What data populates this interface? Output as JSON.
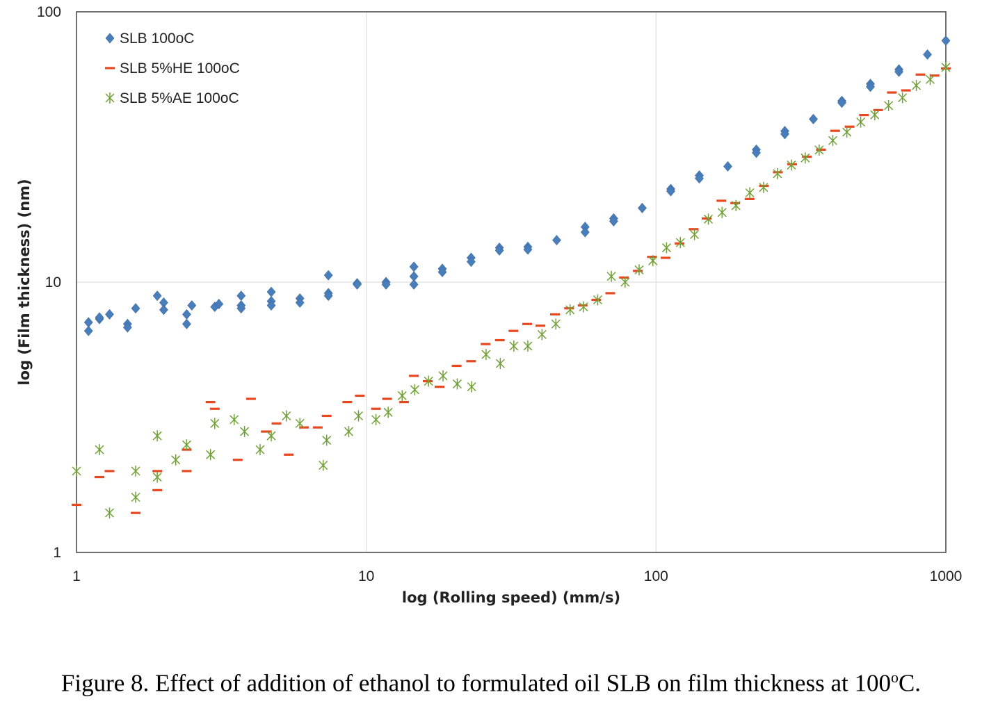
{
  "chart_data": {
    "type": "scatter",
    "xlabel": "log (Rolling speed) (mm/s)",
    "ylabel": "log (Film thickness) (nm)",
    "x_scale": "log",
    "y_scale": "log",
    "xlim": [
      1,
      1000
    ],
    "ylim": [
      1,
      100
    ],
    "x_ticks": [
      "1",
      "10",
      "100",
      "1000"
    ],
    "y_ticks": [
      "1",
      "10",
      "100"
    ],
    "grid": "major",
    "legend": "top-left",
    "series": [
      {
        "name": "SLB 100oC",
        "marker": "diamond",
        "color": "#4a7ebb",
        "points": [
          [
            1.1,
            7.1
          ],
          [
            1.1,
            6.6
          ],
          [
            1.2,
            7.3
          ],
          [
            1.2,
            7.4
          ],
          [
            1.3,
            7.6
          ],
          [
            1.5,
            7.0
          ],
          [
            1.5,
            6.8
          ],
          [
            1.6,
            8.0
          ],
          [
            1.9,
            8.9
          ],
          [
            2.0,
            8.4
          ],
          [
            2.0,
            7.9
          ],
          [
            2.4,
            7.6
          ],
          [
            2.4,
            7.0
          ],
          [
            2.5,
            8.2
          ],
          [
            3.0,
            8.1
          ],
          [
            3.1,
            8.3
          ],
          [
            3.7,
            8.9
          ],
          [
            3.7,
            8.2
          ],
          [
            3.7,
            8.0
          ],
          [
            4.7,
            9.2
          ],
          [
            4.7,
            8.5
          ],
          [
            4.7,
            8.2
          ],
          [
            5.9,
            8.7
          ],
          [
            5.9,
            8.4
          ],
          [
            7.4,
            10.6
          ],
          [
            7.4,
            9.1
          ],
          [
            7.4,
            8.9
          ],
          [
            9.3,
            9.9
          ],
          [
            9.3,
            9.8
          ],
          [
            11.7,
            10.0
          ],
          [
            11.7,
            9.8
          ],
          [
            14.6,
            11.4
          ],
          [
            14.6,
            10.5
          ],
          [
            14.6,
            9.8
          ],
          [
            18.3,
            11.2
          ],
          [
            18.3,
            10.9
          ],
          [
            23.0,
            12.3
          ],
          [
            23.0,
            11.9
          ],
          [
            28.8,
            13.4
          ],
          [
            28.8,
            13.1
          ],
          [
            36.1,
            13.5
          ],
          [
            36.1,
            13.2
          ],
          [
            45.4,
            14.3
          ],
          [
            56.9,
            16.0
          ],
          [
            56.9,
            15.3
          ],
          [
            71.4,
            17.2
          ],
          [
            71.4,
            16.8
          ],
          [
            89.6,
            18.8
          ],
          [
            112.4,
            22.1
          ],
          [
            112.4,
            21.7
          ],
          [
            141.0,
            24.8
          ],
          [
            141.0,
            24.2
          ],
          [
            176.8,
            26.8
          ],
          [
            221.8,
            30.9
          ],
          [
            221.8,
            30.1
          ],
          [
            278.2,
            36.2
          ],
          [
            278.2,
            35.3
          ],
          [
            349.0,
            40.1
          ],
          [
            437.7,
            46.8
          ],
          [
            437.7,
            46.1
          ],
          [
            549.1,
            54.1
          ],
          [
            549.1,
            52.8
          ],
          [
            688.8,
            61.2
          ],
          [
            688.8,
            60.0
          ],
          [
            864.0,
            69.5
          ],
          [
            1000.0,
            78.2
          ]
        ]
      },
      {
        "name": "SLB 5%HE 100oC",
        "marker": "dash",
        "color": "#e8471f",
        "points": [
          [
            1.0,
            1.5
          ],
          [
            1.2,
            1.9
          ],
          [
            1.3,
            2.0
          ],
          [
            1.6,
            1.4
          ],
          [
            1.9,
            2.0
          ],
          [
            1.9,
            1.7
          ],
          [
            2.4,
            2.4
          ],
          [
            2.4,
            2.0
          ],
          [
            2.9,
            3.6
          ],
          [
            3.0,
            3.4
          ],
          [
            3.6,
            2.2
          ],
          [
            4.0,
            3.7
          ],
          [
            4.5,
            2.8
          ],
          [
            4.9,
            3.0
          ],
          [
            5.4,
            2.3
          ],
          [
            6.1,
            2.9
          ],
          [
            6.8,
            2.9
          ],
          [
            7.3,
            3.2
          ],
          [
            8.6,
            3.6
          ],
          [
            9.5,
            3.8
          ],
          [
            10.8,
            3.4
          ],
          [
            11.8,
            3.7
          ],
          [
            13.5,
            3.6
          ],
          [
            14.6,
            4.5
          ],
          [
            16.3,
            4.3
          ],
          [
            17.9,
            4.1
          ],
          [
            20.5,
            4.9
          ],
          [
            23.0,
            5.1
          ],
          [
            25.8,
            5.9
          ],
          [
            28.9,
            6.1
          ],
          [
            32.2,
            6.6
          ],
          [
            35.9,
            7.0
          ],
          [
            39.9,
            6.9
          ],
          [
            44.8,
            7.6
          ],
          [
            50.1,
            8.0
          ],
          [
            55.8,
            8.2
          ],
          [
            62.2,
            8.6
          ],
          [
            69.5,
            9.1
          ],
          [
            77.5,
            10.4
          ],
          [
            86.5,
            11.0
          ],
          [
            96.8,
            12.4
          ],
          [
            107.9,
            12.3
          ],
          [
            120.5,
            13.9
          ],
          [
            134.8,
            15.7
          ],
          [
            149.4,
            17.2
          ],
          [
            168.1,
            20.0
          ],
          [
            187.6,
            19.6
          ],
          [
            210.2,
            20.3
          ],
          [
            235.7,
            22.7
          ],
          [
            263.3,
            25.5
          ],
          [
            294.8,
            27.3
          ],
          [
            331.5,
            29.1
          ],
          [
            370.9,
            30.9
          ],
          [
            414.9,
            36.3
          ],
          [
            465.4,
            37.6
          ],
          [
            521.8,
            41.5
          ],
          [
            583.8,
            43.3
          ],
          [
            651.3,
            50.3
          ],
          [
            728.4,
            51.2
          ],
          [
            817.5,
            58.6
          ],
          [
            914.0,
            58.1
          ],
          [
            1000.0,
            61.7
          ]
        ]
      },
      {
        "name": "SLB 5%AE 100oC",
        "marker": "asterisk",
        "color": "#70a035",
        "points": [
          [
            1.0,
            2.0
          ],
          [
            1.2,
            2.4
          ],
          [
            1.3,
            1.4
          ],
          [
            1.6,
            2.0
          ],
          [
            1.6,
            1.6
          ],
          [
            1.9,
            2.7
          ],
          [
            1.9,
            1.9
          ],
          [
            2.2,
            2.2
          ],
          [
            2.4,
            2.5
          ],
          [
            2.9,
            2.3
          ],
          [
            3.0,
            3.0
          ],
          [
            3.5,
            3.1
          ],
          [
            3.8,
            2.8
          ],
          [
            4.3,
            2.4
          ],
          [
            4.7,
            2.7
          ],
          [
            5.3,
            3.2
          ],
          [
            5.9,
            3.0
          ],
          [
            7.1,
            2.1
          ],
          [
            7.3,
            2.6
          ],
          [
            8.7,
            2.8
          ],
          [
            9.4,
            3.2
          ],
          [
            10.8,
            3.1
          ],
          [
            11.9,
            3.3
          ],
          [
            13.3,
            3.8
          ],
          [
            14.7,
            4.0
          ],
          [
            16.4,
            4.3
          ],
          [
            18.4,
            4.5
          ],
          [
            20.6,
            4.2
          ],
          [
            23.1,
            4.1
          ],
          [
            25.9,
            5.4
          ],
          [
            29.0,
            5.0
          ],
          [
            32.3,
            5.8
          ],
          [
            36.1,
            5.8
          ],
          [
            40.4,
            6.4
          ],
          [
            45.1,
            7.0
          ],
          [
            50.5,
            7.9
          ],
          [
            56.2,
            8.1
          ],
          [
            62.9,
            8.6
          ],
          [
            70.1,
            10.5
          ],
          [
            78.2,
            10.0
          ],
          [
            87.4,
            11.1
          ],
          [
            97.5,
            12.0
          ],
          [
            108.7,
            13.4
          ],
          [
            121.3,
            14.0
          ],
          [
            135.7,
            15.0
          ],
          [
            151.5,
            17.1
          ],
          [
            169.0,
            18.1
          ],
          [
            188.7,
            19.2
          ],
          [
            210.6,
            21.4
          ],
          [
            235.0,
            22.4
          ],
          [
            262.4,
            25.2
          ],
          [
            293.2,
            27.1
          ],
          [
            327.2,
            28.8
          ],
          [
            365.5,
            30.8
          ],
          [
            407.3,
            33.4
          ],
          [
            455.4,
            35.9
          ],
          [
            508.6,
            39.1
          ],
          [
            568.5,
            41.6
          ],
          [
            634.3,
            45.0
          ],
          [
            708.4,
            48.1
          ],
          [
            791.0,
            53.4
          ],
          [
            883.0,
            56.2
          ],
          [
            1000.0,
            62.3
          ]
        ]
      }
    ]
  },
  "caption": {
    "text": "Figure 8. Effect of addition of ethanol to formulated oil SLB on film thickness at 100",
    "superscript": "o",
    "suffix": "C."
  }
}
